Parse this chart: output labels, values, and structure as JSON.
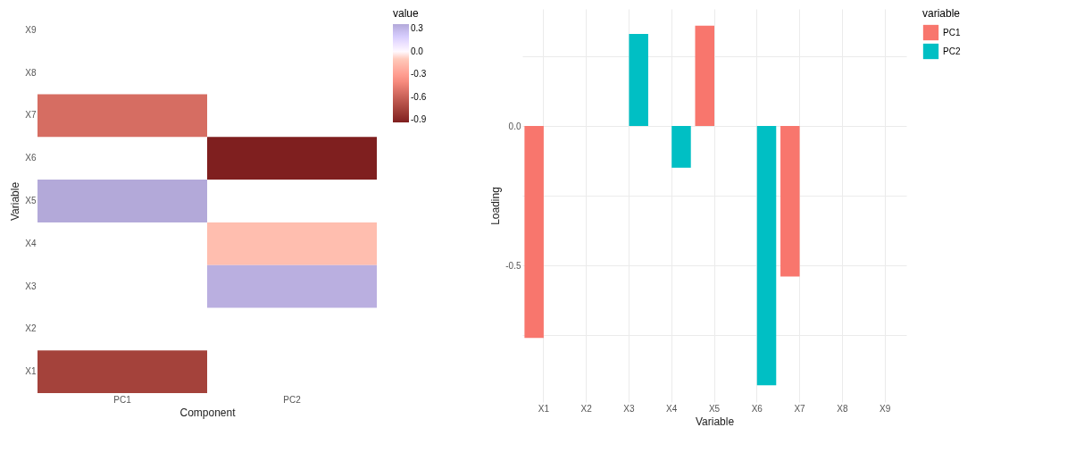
{
  "chart_data": [
    {
      "type": "heatmap",
      "xlabel": "Component",
      "ylabel": "Variable",
      "clabel": "value",
      "categories": [
        "PC1",
        "PC2"
      ],
      "y_categories": [
        "X9",
        "X8",
        "X7",
        "X6",
        "X5",
        "X4",
        "X3",
        "X2",
        "X1"
      ],
      "cells": [
        [
          null,
          null
        ],
        [
          null,
          null
        ],
        [
          -0.54,
          null
        ],
        [
          null,
          -0.93
        ],
        [
          0.36,
          null
        ],
        [
          null,
          -0.15
        ],
        [
          null,
          0.33
        ],
        [
          null,
          null
        ],
        [
          -0.76,
          null
        ]
      ],
      "clim": [
        -0.93,
        0.36
      ],
      "cticks": [
        0.3,
        {
          "value": 0,
          "label": "0.0"
        },
        -0.3,
        -0.6,
        -0.9
      ]
    },
    {
      "type": "bar",
      "xlabel": "Variable",
      "ylabel": "Loading",
      "legend_title": "variable",
      "categories": [
        "X1",
        "X2",
        "X3",
        "X4",
        "X5",
        "X6",
        "X7",
        "X8",
        "X9"
      ],
      "series": [
        {
          "name": "PC1",
          "color": "#f8766d",
          "values": [
            -0.76,
            null,
            null,
            null,
            0.36,
            null,
            -0.54,
            null,
            null
          ]
        },
        {
          "name": "PC2",
          "color": "#00bfc4",
          "values": [
            null,
            null,
            0.33,
            -0.15,
            null,
            -0.93,
            null,
            null,
            null
          ]
        }
      ],
      "ylim": [
        -0.99,
        0.42
      ],
      "yticks": [
        {
          "value": 0.25,
          "label": null
        },
        {
          "value": 0.0,
          "label": "0.0"
        },
        {
          "value": -0.25,
          "label": null
        },
        {
          "value": -0.5,
          "label": "-0.5"
        },
        {
          "value": -0.75,
          "label": null
        }
      ],
      "grid": true,
      "legend": "right"
    }
  ]
}
